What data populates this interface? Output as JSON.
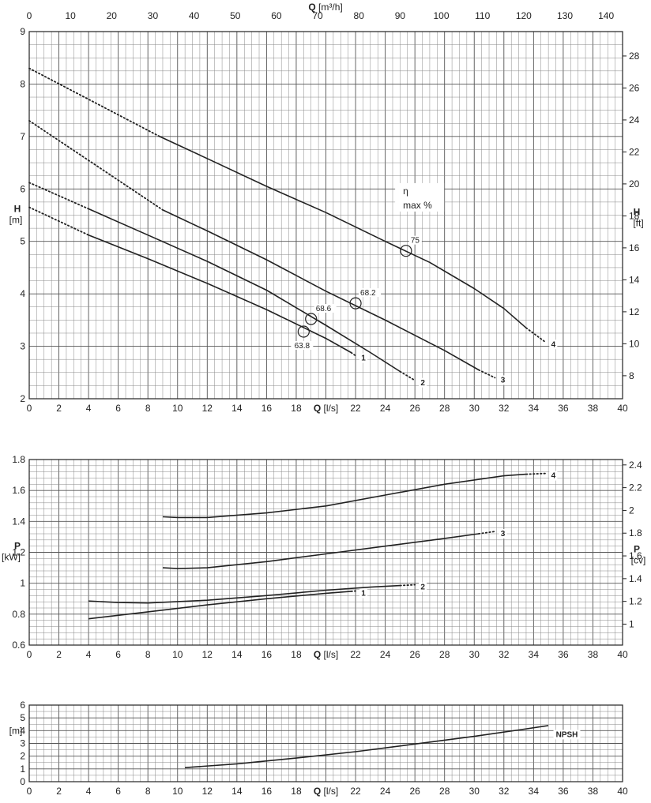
{
  "chart_data": [
    {
      "type": "line",
      "id": "head",
      "title": "",
      "x_label": {
        "sym": "Q",
        "unit": "[l/s]"
      },
      "x_ticks": [
        "0",
        "2",
        "4",
        "6",
        "8",
        "10",
        "12",
        "14",
        "16",
        "18",
        "20",
        "22",
        "24",
        "26",
        "28",
        "30",
        "32",
        "34",
        "36",
        "38",
        "40"
      ],
      "xlim": [
        0,
        40
      ],
      "top_axis": {
        "sym": "Q",
        "unit": "[m³/h]",
        "ticks": [
          "0",
          "10",
          "20",
          "30",
          "40",
          "50",
          "60",
          "70",
          "80",
          "90",
          "100",
          "110",
          "120",
          "130",
          "140"
        ]
      },
      "y_left": {
        "sym": "H",
        "unit": "[m]",
        "ticks": [
          "2",
          "3",
          "4",
          "5",
          "6",
          "7",
          "8",
          "9"
        ],
        "range": [
          2,
          9
        ]
      },
      "y_right": {
        "sym": "H",
        "unit": "[ft]",
        "ticks": [
          "8",
          "10",
          "12",
          "14",
          "16",
          "18",
          "20",
          "22",
          "24",
          "26",
          "28"
        ]
      },
      "grid": true,
      "series": [
        {
          "name": "1",
          "solid": [
            [
              4.0,
              5.12
            ],
            [
              8,
              4.67
            ],
            [
              12,
              4.2
            ],
            [
              16,
              3.7
            ],
            [
              20,
              3.15
            ],
            [
              21.7,
              2.88
            ]
          ],
          "dotted_start": [
            [
              0,
              5.65
            ],
            [
              4.0,
              5.12
            ]
          ],
          "dotted_end": [
            [
              21.7,
              2.88
            ],
            [
              22,
              2.82
            ]
          ]
        },
        {
          "name": "2",
          "solid": [
            [
              4.0,
              5.62
            ],
            [
              8,
              5.12
            ],
            [
              12,
              4.62
            ],
            [
              16,
              4.07
            ],
            [
              20,
              3.4
            ],
            [
              23,
              2.88
            ],
            [
              25,
              2.52
            ]
          ],
          "dotted_start": [
            [
              0,
              6.12
            ],
            [
              4.0,
              5.62
            ]
          ],
          "dotted_end": [
            [
              25,
              2.52
            ],
            [
              26,
              2.35
            ]
          ]
        },
        {
          "name": "3",
          "solid": [
            [
              9.0,
              5.6
            ],
            [
              12,
              5.2
            ],
            [
              16,
              4.65
            ],
            [
              20,
              4.05
            ],
            [
              24,
              3.5
            ],
            [
              28,
              2.92
            ],
            [
              30.3,
              2.55
            ]
          ],
          "dotted_start": [
            [
              0,
              7.3
            ],
            [
              9.0,
              5.6
            ]
          ],
          "dotted_end": [
            [
              30.3,
              2.55
            ],
            [
              31.4,
              2.4
            ]
          ]
        },
        {
          "name": "4",
          "solid": [
            [
              8.8,
              7.0
            ],
            [
              12,
              6.58
            ],
            [
              16,
              6.05
            ],
            [
              20,
              5.55
            ],
            [
              24,
              5.0
            ],
            [
              27,
              4.6
            ],
            [
              30,
              4.1
            ],
            [
              32,
              3.72
            ],
            [
              33.5,
              3.35
            ]
          ],
          "dotted_start": [
            [
              0,
              8.3
            ],
            [
              8.8,
              7.0
            ]
          ],
          "dotted_end": [
            [
              33.5,
              3.35
            ],
            [
              34.8,
              3.08
            ]
          ]
        }
      ],
      "efficiency_header": [
        "η",
        "max %"
      ],
      "efficiency_points": [
        {
          "curve": "1",
          "x": 18.5,
          "y": 3.28,
          "value": "63.8"
        },
        {
          "curve": "2",
          "x": 19.0,
          "y": 3.52,
          "value": "68.6"
        },
        {
          "curve": "3",
          "x": 22.0,
          "y": 3.82,
          "value": "68.2"
        },
        {
          "curve": "4",
          "x": 25.4,
          "y": 4.82,
          "value": "75"
        }
      ]
    },
    {
      "type": "line",
      "id": "power",
      "title": "",
      "x_label": {
        "sym": "Q",
        "unit": "[l/s]"
      },
      "x_ticks": [
        "0",
        "2",
        "4",
        "6",
        "8",
        "10",
        "12",
        "14",
        "16",
        "18",
        "20",
        "22",
        "24",
        "26",
        "28",
        "30",
        "32",
        "34",
        "36",
        "38",
        "40"
      ],
      "xlim": [
        0,
        40
      ],
      "y_left": {
        "sym": "P",
        "unit": "[kW]",
        "ticks": [
          "0.6",
          "0.8",
          "1",
          "1.2",
          "1.4",
          "1.6",
          "1.8"
        ],
        "range": [
          0.6,
          1.8
        ]
      },
      "y_right": {
        "sym": "P",
        "unit": "[cv]",
        "ticks": [
          "1",
          "1.2",
          "1.4",
          "1.6",
          "1.8",
          "2",
          "2.2",
          "2.4"
        ]
      },
      "grid": true,
      "series": [
        {
          "name": "1",
          "solid": [
            [
              4,
              0.77
            ],
            [
              8,
              0.815
            ],
            [
              12,
              0.86
            ],
            [
              16,
              0.9
            ],
            [
              20,
              0.935
            ],
            [
              21.7,
              0.948
            ]
          ],
          "dotted_end": [
            [
              21.7,
              0.948
            ],
            [
              22,
              0.95
            ]
          ]
        },
        {
          "name": "2",
          "solid": [
            [
              4,
              0.885
            ],
            [
              6,
              0.875
            ],
            [
              8,
              0.872
            ],
            [
              12,
              0.89
            ],
            [
              16,
              0.92
            ],
            [
              20,
              0.955
            ],
            [
              23,
              0.975
            ],
            [
              25,
              0.985
            ]
          ],
          "dotted_end": [
            [
              25,
              0.985
            ],
            [
              26,
              0.99
            ]
          ]
        },
        {
          "name": "3",
          "solid": [
            [
              9,
              1.1
            ],
            [
              10,
              1.095
            ],
            [
              12,
              1.1
            ],
            [
              16,
              1.14
            ],
            [
              20,
              1.19
            ],
            [
              24,
              1.24
            ],
            [
              28,
              1.29
            ],
            [
              30.3,
              1.32
            ]
          ],
          "dotted_end": [
            [
              30.3,
              1.32
            ],
            [
              31.4,
              1.335
            ]
          ]
        },
        {
          "name": "4",
          "solid": [
            [
              9,
              1.43
            ],
            [
              10,
              1.425
            ],
            [
              12,
              1.425
            ],
            [
              16,
              1.455
            ],
            [
              20,
              1.5
            ],
            [
              24,
              1.57
            ],
            [
              28,
              1.64
            ],
            [
              32,
              1.695
            ],
            [
              33.5,
              1.705
            ]
          ],
          "dotted_end": [
            [
              33.5,
              1.705
            ],
            [
              34.8,
              1.71
            ]
          ]
        }
      ]
    },
    {
      "type": "line",
      "id": "npsh",
      "title": "",
      "x_label": {
        "sym": "Q",
        "unit": "[l/s]"
      },
      "x_ticks": [
        "0",
        "2",
        "4",
        "6",
        "8",
        "10",
        "12",
        "14",
        "16",
        "18",
        "20",
        "22",
        "24",
        "26",
        "28",
        "30",
        "32",
        "34",
        "36",
        "38",
        "40"
      ],
      "xlim": [
        0,
        40
      ],
      "y_left": {
        "sym": "",
        "unit": "[m]",
        "ticks": [
          "0",
          "1",
          "2",
          "3",
          "4",
          "5",
          "6"
        ],
        "range": [
          0,
          6
        ]
      },
      "grid": true,
      "series": [
        {
          "name": "NPSH",
          "solid": [
            [
              10.5,
              1.1
            ],
            [
              14,
              1.4
            ],
            [
              18,
              1.85
            ],
            [
              22,
              2.35
            ],
            [
              26,
              2.95
            ],
            [
              30,
              3.55
            ],
            [
              33,
              4.05
            ],
            [
              35,
              4.4
            ]
          ]
        }
      ]
    }
  ]
}
